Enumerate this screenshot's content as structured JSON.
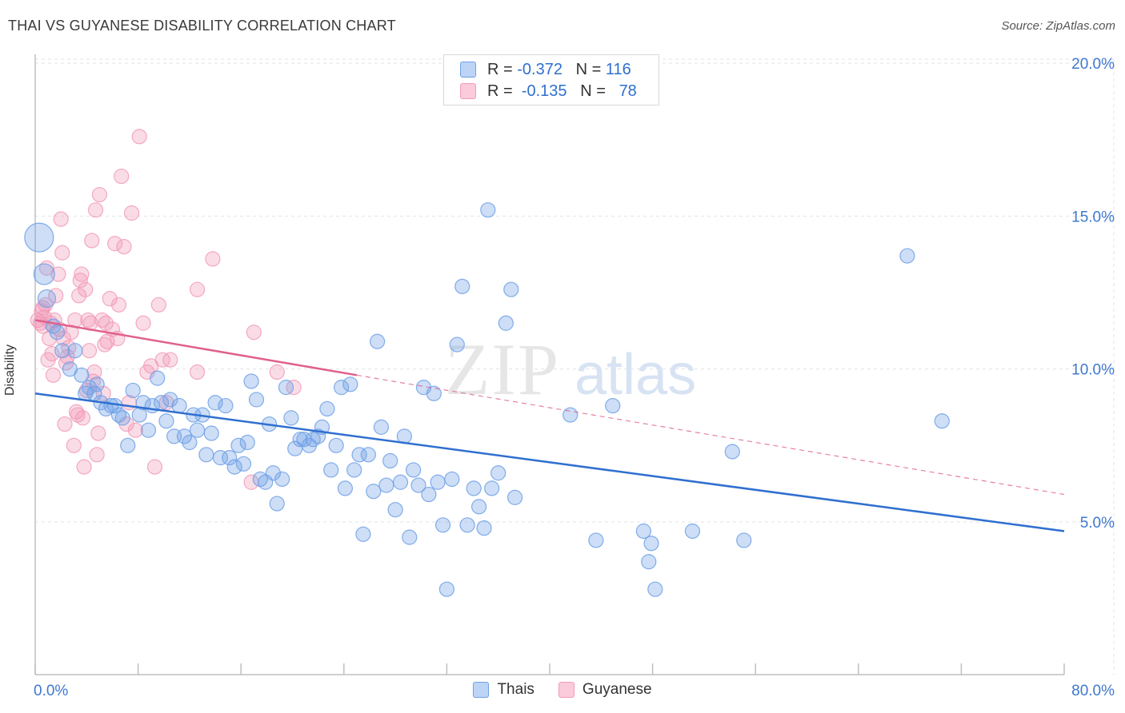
{
  "header": {
    "title": "THAI VS GUYANESE DISABILITY CORRELATION CHART",
    "source": "Source: ZipAtlas.com"
  },
  "watermark": {
    "zip": "ZIP",
    "atlas": "atlas"
  },
  "legend": {
    "thai": {
      "r_label": "R =",
      "r_value": "-0.372",
      "n_label": "N =",
      "n_value": "116"
    },
    "guyanese": {
      "r_label": "R =",
      "r_value": "-0.135",
      "n_label": "N =",
      "n_value": "78"
    }
  },
  "chart_data": {
    "type": "scatter",
    "title": "THAI VS GUYANESE DISABILITY CORRELATION CHART",
    "ylabel": "Disability",
    "xlabel": "",
    "xlim": [
      0,
      80
    ],
    "ylim": [
      0,
      21
    ],
    "x_tick_labels": [
      "0.0%",
      "80.0%"
    ],
    "y_ticks": [
      5,
      10,
      15,
      20
    ],
    "y_tick_labels": [
      "5.0%",
      "10.0%",
      "15.0%",
      "20.0%"
    ],
    "grid": true,
    "legend_position": "bottom-center",
    "colors": {
      "thai": "#6fa0e6",
      "thai_line": "#2f6fd0",
      "guyanese": "#f29bb8",
      "guyanese_line": "#e0608c"
    },
    "series": [
      {
        "name": "Thais",
        "trend": {
          "x": [
            0,
            80
          ],
          "y": [
            9.2,
            4.7
          ],
          "style": "solid"
        },
        "points": [
          [
            0.3,
            14.3
          ],
          [
            0.7,
            13.1
          ],
          [
            0.9,
            12.3
          ],
          [
            1.4,
            11.4
          ],
          [
            1.7,
            11.2
          ],
          [
            2.1,
            10.6
          ],
          [
            3.1,
            10.6
          ],
          [
            2.7,
            10.0
          ],
          [
            3.6,
            9.8
          ],
          [
            3.9,
            9.2
          ],
          [
            4.2,
            9.4
          ],
          [
            4.6,
            9.2
          ],
          [
            4.8,
            9.5
          ],
          [
            5.1,
            8.9
          ],
          [
            5.5,
            8.7
          ],
          [
            5.9,
            8.8
          ],
          [
            6.2,
            8.8
          ],
          [
            6.5,
            8.5
          ],
          [
            6.8,
            8.4
          ],
          [
            7.2,
            7.5
          ],
          [
            7.6,
            9.3
          ],
          [
            8.1,
            8.5
          ],
          [
            8.4,
            8.9
          ],
          [
            8.8,
            8.0
          ],
          [
            9.1,
            8.8
          ],
          [
            9.5,
            9.7
          ],
          [
            9.8,
            8.9
          ],
          [
            10.2,
            8.3
          ],
          [
            10.5,
            9.0
          ],
          [
            10.8,
            7.8
          ],
          [
            11.2,
            8.8
          ],
          [
            11.6,
            7.8
          ],
          [
            12.0,
            7.6
          ],
          [
            12.3,
            8.5
          ],
          [
            12.6,
            8.0
          ],
          [
            13.0,
            8.5
          ],
          [
            13.3,
            7.2
          ],
          [
            13.7,
            7.9
          ],
          [
            14.0,
            8.9
          ],
          [
            14.4,
            7.1
          ],
          [
            14.8,
            8.8
          ],
          [
            15.1,
            7.1
          ],
          [
            15.5,
            6.8
          ],
          [
            15.8,
            7.5
          ],
          [
            16.2,
            6.9
          ],
          [
            16.5,
            7.6
          ],
          [
            16.8,
            9.6
          ],
          [
            17.2,
            9.0
          ],
          [
            17.5,
            6.4
          ],
          [
            17.9,
            6.3
          ],
          [
            18.2,
            8.2
          ],
          [
            18.5,
            6.6
          ],
          [
            18.8,
            5.6
          ],
          [
            19.2,
            6.4
          ],
          [
            19.5,
            9.4
          ],
          [
            19.9,
            8.4
          ],
          [
            20.2,
            7.4
          ],
          [
            20.6,
            7.7
          ],
          [
            20.9,
            7.7
          ],
          [
            21.3,
            7.5
          ],
          [
            21.6,
            7.7
          ],
          [
            22.0,
            7.8
          ],
          [
            22.3,
            8.1
          ],
          [
            22.7,
            8.7
          ],
          [
            23.0,
            6.7
          ],
          [
            23.4,
            7.5
          ],
          [
            23.8,
            9.4
          ],
          [
            24.1,
            6.1
          ],
          [
            24.5,
            9.5
          ],
          [
            24.8,
            6.7
          ],
          [
            25.2,
            7.2
          ],
          [
            25.5,
            4.6
          ],
          [
            25.9,
            7.2
          ],
          [
            26.3,
            6.0
          ],
          [
            26.6,
            10.9
          ],
          [
            26.9,
            8.1
          ],
          [
            27.3,
            6.2
          ],
          [
            27.6,
            7.0
          ],
          [
            28.0,
            5.4
          ],
          [
            28.4,
            6.3
          ],
          [
            28.7,
            7.8
          ],
          [
            29.1,
            4.5
          ],
          [
            29.4,
            6.7
          ],
          [
            29.8,
            6.2
          ],
          [
            30.2,
            9.4
          ],
          [
            30.6,
            5.9
          ],
          [
            31.0,
            9.2
          ],
          [
            31.3,
            6.3
          ],
          [
            31.7,
            4.9
          ],
          [
            32.0,
            2.8
          ],
          [
            32.4,
            6.4
          ],
          [
            32.8,
            10.8
          ],
          [
            33.2,
            12.7
          ],
          [
            33.6,
            4.9
          ],
          [
            34.1,
            6.1
          ],
          [
            34.5,
            5.5
          ],
          [
            34.9,
            4.8
          ],
          [
            35.2,
            15.2
          ],
          [
            35.5,
            6.1
          ],
          [
            36.0,
            6.6
          ],
          [
            36.6,
            11.5
          ],
          [
            37.0,
            12.6
          ],
          [
            37.3,
            5.8
          ],
          [
            41.6,
            8.5
          ],
          [
            43.6,
            4.4
          ],
          [
            44.9,
            8.8
          ],
          [
            47.3,
            4.7
          ],
          [
            47.7,
            3.7
          ],
          [
            47.9,
            4.3
          ],
          [
            48.2,
            2.8
          ],
          [
            51.1,
            4.7
          ],
          [
            54.2,
            7.3
          ],
          [
            55.1,
            4.4
          ],
          [
            67.8,
            13.7
          ],
          [
            70.5,
            8.3
          ]
        ]
      },
      {
        "name": "Guyanese",
        "trend": {
          "x": [
            0,
            25
          ],
          "y": [
            11.6,
            9.8
          ],
          "style": "solid",
          "extended": {
            "x": [
              25,
              80
            ],
            "y": [
              9.8,
              5.9
            ],
            "style": "dashed"
          }
        },
        "points": [
          [
            0.2,
            11.6
          ],
          [
            0.4,
            11.5
          ],
          [
            0.5,
            11.9
          ],
          [
            0.6,
            11.4
          ],
          [
            0.7,
            11.7
          ],
          [
            0.8,
            12.1
          ],
          [
            0.9,
            13.3
          ],
          [
            1.0,
            10.3
          ],
          [
            1.1,
            11.0
          ],
          [
            1.3,
            10.5
          ],
          [
            1.4,
            9.8
          ],
          [
            1.5,
            11.6
          ],
          [
            1.6,
            12.4
          ],
          [
            1.8,
            13.1
          ],
          [
            1.9,
            11.3
          ],
          [
            2.0,
            14.9
          ],
          [
            2.1,
            13.8
          ],
          [
            2.2,
            11.0
          ],
          [
            2.3,
            8.2
          ],
          [
            2.5,
            10.4
          ],
          [
            2.6,
            10.7
          ],
          [
            2.8,
            11.2
          ],
          [
            3.0,
            7.5
          ],
          [
            3.1,
            11.6
          ],
          [
            3.3,
            8.5
          ],
          [
            3.4,
            12.4
          ],
          [
            3.5,
            12.9
          ],
          [
            3.6,
            13.1
          ],
          [
            3.7,
            8.4
          ],
          [
            3.8,
            6.8
          ],
          [
            3.9,
            12.6
          ],
          [
            4.0,
            9.3
          ],
          [
            4.1,
            11.6
          ],
          [
            4.2,
            10.6
          ],
          [
            4.3,
            11.5
          ],
          [
            4.4,
            14.2
          ],
          [
            4.5,
            9.6
          ],
          [
            4.6,
            9.9
          ],
          [
            4.7,
            15.2
          ],
          [
            4.8,
            7.2
          ],
          [
            4.9,
            7.9
          ],
          [
            5.0,
            15.7
          ],
          [
            5.2,
            11.6
          ],
          [
            5.3,
            9.2
          ],
          [
            5.4,
            10.8
          ],
          [
            5.5,
            11.5
          ],
          [
            5.6,
            10.9
          ],
          [
            5.8,
            12.3
          ],
          [
            6.0,
            11.3
          ],
          [
            6.2,
            14.1
          ],
          [
            6.4,
            11.0
          ],
          [
            6.5,
            12.1
          ],
          [
            6.7,
            16.3
          ],
          [
            6.9,
            14.0
          ],
          [
            7.1,
            8.2
          ],
          [
            7.3,
            8.9
          ],
          [
            7.5,
            15.1
          ],
          [
            7.8,
            8.0
          ],
          [
            8.1,
            17.6
          ],
          [
            8.4,
            11.5
          ],
          [
            8.7,
            9.9
          ],
          [
            9.0,
            10.1
          ],
          [
            9.3,
            6.8
          ],
          [
            9.6,
            12.1
          ],
          [
            9.9,
            10.3
          ],
          [
            10.2,
            8.9
          ],
          [
            10.5,
            10.3
          ],
          [
            12.6,
            9.9
          ],
          [
            12.6,
            12.6
          ],
          [
            13.8,
            13.6
          ],
          [
            16.8,
            6.3
          ],
          [
            17.0,
            11.2
          ],
          [
            18.8,
            9.9
          ],
          [
            20.1,
            9.4
          ],
          [
            0.6,
            12.0
          ],
          [
            1.2,
            11.5
          ],
          [
            2.4,
            10.2
          ],
          [
            3.2,
            8.6
          ]
        ]
      }
    ]
  }
}
